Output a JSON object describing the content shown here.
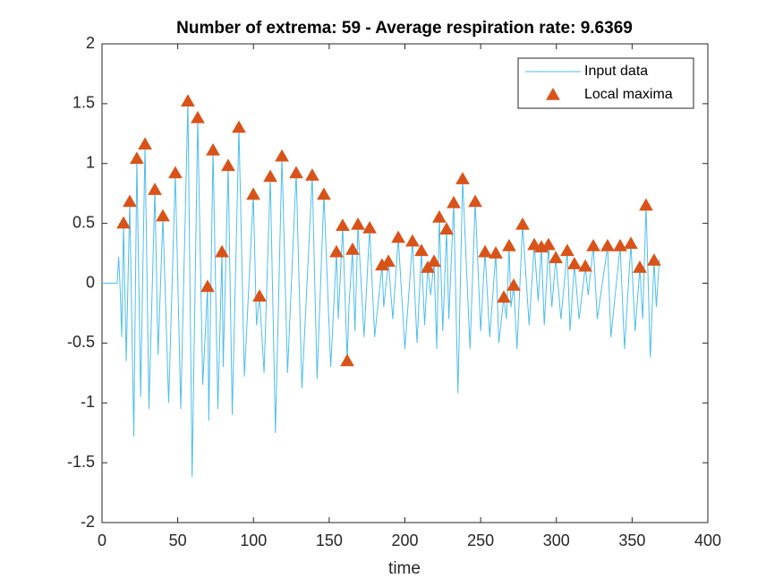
{
  "chart_data": {
    "type": "line",
    "title": "Number of extrema: 59 - Average respiration rate: 9.6369",
    "xlabel": "time",
    "xlim": [
      0,
      400
    ],
    "ylim": [
      -2,
      2
    ],
    "xticks": [
      0,
      50,
      100,
      150,
      200,
      250,
      300,
      350,
      400
    ],
    "yticks": [
      -2,
      -1.5,
      -1,
      -0.5,
      0,
      0.5,
      1,
      1.5,
      2
    ],
    "legend": "upper right",
    "series": [
      {
        "name": "Input data",
        "type": "line",
        "color": "#4DBEEE",
        "x": [
          0,
          10,
          11,
          12,
          13,
          14.2,
          16,
          18.3,
          21,
          23,
          25.5,
          28.4,
          31,
          34.9,
          37,
          40.2,
          44,
          48.4,
          52,
          56.7,
          59.5,
          63.2,
          66.5,
          69.7,
          70.5,
          73.3,
          76.5,
          79.2,
          80,
          83.3,
          86,
          90.4,
          94,
          99.9,
          102,
          104,
          107,
          111.1,
          114.5,
          118.8,
          122.5,
          128.2,
          132,
          138.8,
          142,
          146.5,
          151,
          154.8,
          156,
          158.9,
          161.9,
          163,
          165.4,
          167,
          169,
          173,
          176.7,
          180,
          184.9,
          186,
          189.1,
          192,
          195.6,
          200,
          205,
          208,
          210.9,
          213,
          215.1,
          217,
          219.2,
          221,
          222.7,
          225,
          227.5,
          229,
          232.2,
          235,
          238.1,
          243,
          246.4,
          250,
          252.9,
          256,
          260,
          262,
          265.3,
          267,
          268.8,
          270,
          271.8,
          274,
          277.7,
          282,
          285.4,
          288,
          290.1,
          292,
          294.8,
          297,
          299.6,
          303,
          307.2,
          309,
          311.9,
          315,
          319.1,
          321,
          324.4,
          327,
          333.8,
          336,
          342.1,
          345,
          349.2,
          352,
          355.1,
          357,
          359.2,
          362,
          364.5,
          366,
          368
        ],
        "values": [
          0,
          0,
          0.22,
          -0.05,
          -0.45,
          0.5,
          -0.65,
          0.68,
          -1.28,
          1.04,
          -0.95,
          1.16,
          -1.05,
          0.78,
          -0.6,
          0.56,
          -1.0,
          0.92,
          -1.05,
          1.52,
          -1.62,
          1.38,
          -0.85,
          -0.03,
          -1.15,
          1.11,
          -1.05,
          0.26,
          -0.7,
          0.98,
          -1.1,
          1.3,
          -0.78,
          0.74,
          -0.35,
          -0.11,
          -0.75,
          0.89,
          -1.25,
          1.06,
          -0.75,
          0.92,
          -0.88,
          0.9,
          -0.8,
          0.74,
          -0.7,
          0.26,
          -0.3,
          0.48,
          -0.65,
          -0.2,
          0.28,
          -0.4,
          0.49,
          -0.45,
          0.46,
          -0.45,
          0.15,
          -0.2,
          0.18,
          -0.3,
          0.38,
          -0.55,
          0.35,
          -0.5,
          0.27,
          -0.35,
          0.13,
          -0.1,
          0.18,
          -0.55,
          0.55,
          -0.4,
          0.45,
          -0.3,
          0.67,
          -0.92,
          0.87,
          -0.55,
          0.68,
          -0.4,
          0.26,
          -0.45,
          0.25,
          -0.5,
          -0.12,
          -0.3,
          0.31,
          -0.2,
          -0.02,
          -0.55,
          0.49,
          -0.35,
          0.32,
          -0.15,
          0.3,
          -0.35,
          0.32,
          -0.2,
          0.21,
          -0.3,
          0.27,
          -0.4,
          0.16,
          -0.3,
          0.14,
          -0.1,
          0.31,
          -0.3,
          0.31,
          -0.45,
          0.31,
          -0.55,
          0.33,
          -0.4,
          0.13,
          -0.3,
          0.65,
          -0.62,
          0.19,
          -0.2,
          0.2
        ]
      },
      {
        "name": "Local maxima",
        "type": "marker",
        "marker": "triangle",
        "color": "#D95319",
        "x": [
          14.2,
          18.3,
          23,
          28.4,
          34.9,
          40.2,
          48.4,
          56.7,
          63.2,
          69.7,
          73.3,
          79.2,
          83.3,
          90.4,
          99.9,
          104,
          111.1,
          118.8,
          128.2,
          138.8,
          146.5,
          154.8,
          158.9,
          161.9,
          165.4,
          169,
          176.7,
          184.9,
          189.1,
          195.6,
          205,
          210.9,
          215.1,
          219.2,
          222.7,
          227.5,
          232.2,
          238.1,
          246.4,
          252.9,
          260,
          265.3,
          268.8,
          271.8,
          277.7,
          285.4,
          290.1,
          294.8,
          299.6,
          307.2,
          311.9,
          319.1,
          324.4,
          333.8,
          342.1,
          349.2,
          355.1,
          359.2,
          364.5
        ],
        "values": [
          0.5,
          0.68,
          1.04,
          1.16,
          0.78,
          0.56,
          0.92,
          1.52,
          1.38,
          -0.03,
          1.11,
          0.26,
          0.98,
          1.3,
          0.74,
          -0.11,
          0.89,
          1.06,
          0.92,
          0.9,
          0.74,
          0.26,
          0.48,
          -0.65,
          0.28,
          0.49,
          0.46,
          0.15,
          0.18,
          0.38,
          0.35,
          0.27,
          0.13,
          0.18,
          0.55,
          0.45,
          0.67,
          0.87,
          0.68,
          0.26,
          0.25,
          -0.12,
          0.31,
          -0.02,
          0.49,
          0.32,
          0.3,
          0.32,
          0.21,
          0.27,
          0.16,
          0.14,
          0.31,
          0.31,
          0.31,
          0.33,
          0.13,
          0.65,
          0.19
        ]
      }
    ]
  }
}
